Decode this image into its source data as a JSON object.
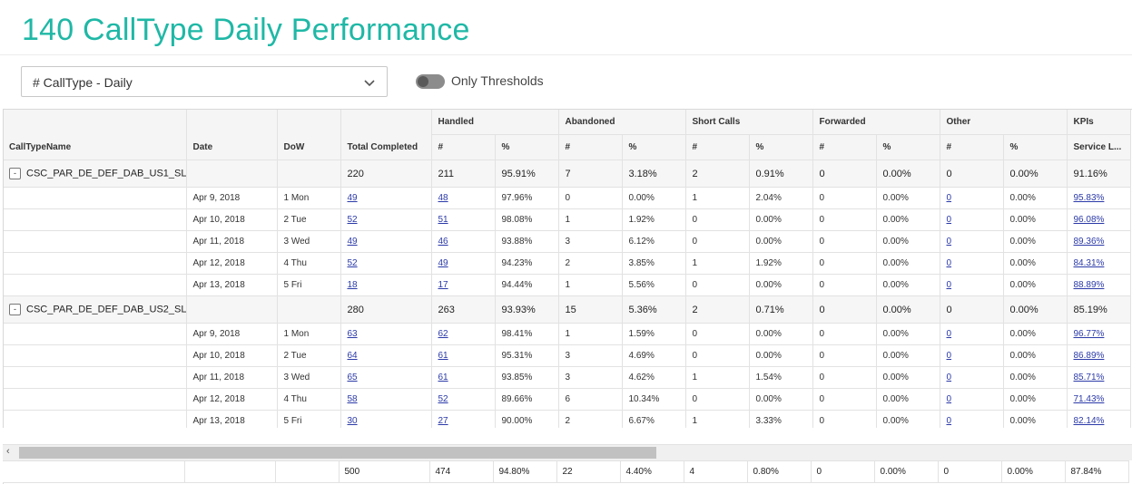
{
  "page": {
    "title": "140 CallType Daily Performance"
  },
  "filter": {
    "selected": "# CallType - Daily"
  },
  "threshold_toggle": {
    "label": "Only Thresholds",
    "on": false
  },
  "table": {
    "group_headers": [
      "Handled",
      "Abandoned",
      "Short Calls",
      "Forwarded",
      "Other",
      "KPIs"
    ],
    "columns": {
      "name": "CallTypeName",
      "date": "Date",
      "dow": "DoW",
      "total": "Total Completed",
      "num": "#",
      "pct": "%",
      "service": "Service L..."
    },
    "groups": [
      {
        "name": "CSC_PAR_DE_DEF_DAB_US1_SL",
        "expander": "-",
        "summary": [
          "220",
          "211",
          "95.91%",
          "7",
          "3.18%",
          "2",
          "0.91%",
          "0",
          "0.00%",
          "0",
          "0.00%",
          "91.16%"
        ],
        "rows": [
          {
            "date": "Apr 9, 2018",
            "dow": "1 Mon",
            "cells": [
              "49",
              "48",
              "97.96%",
              "0",
              "0.00%",
              "1",
              "2.04%",
              "0",
              "0.00%",
              "0",
              "0.00%",
              "95.83%"
            ]
          },
          {
            "date": "Apr 10, 2018",
            "dow": "2 Tue",
            "cells": [
              "52",
              "51",
              "98.08%",
              "1",
              "1.92%",
              "0",
              "0.00%",
              "0",
              "0.00%",
              "0",
              "0.00%",
              "96.08%"
            ]
          },
          {
            "date": "Apr 11, 2018",
            "dow": "3 Wed",
            "cells": [
              "49",
              "46",
              "93.88%",
              "3",
              "6.12%",
              "0",
              "0.00%",
              "0",
              "0.00%",
              "0",
              "0.00%",
              "89.36%"
            ]
          },
          {
            "date": "Apr 12, 2018",
            "dow": "4 Thu",
            "cells": [
              "52",
              "49",
              "94.23%",
              "2",
              "3.85%",
              "1",
              "1.92%",
              "0",
              "0.00%",
              "0",
              "0.00%",
              "84.31%"
            ]
          },
          {
            "date": "Apr 13, 2018",
            "dow": "5 Fri",
            "cells": [
              "18",
              "17",
              "94.44%",
              "1",
              "5.56%",
              "0",
              "0.00%",
              "0",
              "0.00%",
              "0",
              "0.00%",
              "88.89%"
            ]
          }
        ]
      },
      {
        "name": "CSC_PAR_DE_DEF_DAB_US2_SL",
        "expander": "-",
        "summary": [
          "280",
          "263",
          "93.93%",
          "15",
          "5.36%",
          "2",
          "0.71%",
          "0",
          "0.00%",
          "0",
          "0.00%",
          "85.19%"
        ],
        "rows": [
          {
            "date": "Apr 9, 2018",
            "dow": "1 Mon",
            "cells": [
              "63",
              "62",
              "98.41%",
              "1",
              "1.59%",
              "0",
              "0.00%",
              "0",
              "0.00%",
              "0",
              "0.00%",
              "96.77%"
            ]
          },
          {
            "date": "Apr 10, 2018",
            "dow": "2 Tue",
            "cells": [
              "64",
              "61",
              "95.31%",
              "3",
              "4.69%",
              "0",
              "0.00%",
              "0",
              "0.00%",
              "0",
              "0.00%",
              "86.89%"
            ]
          },
          {
            "date": "Apr 11, 2018",
            "dow": "3 Wed",
            "cells": [
              "65",
              "61",
              "93.85%",
              "3",
              "4.62%",
              "1",
              "1.54%",
              "0",
              "0.00%",
              "0",
              "0.00%",
              "85.71%"
            ]
          },
          {
            "date": "Apr 12, 2018",
            "dow": "4 Thu",
            "cells": [
              "58",
              "52",
              "89.66%",
              "6",
              "10.34%",
              "0",
              "0.00%",
              "0",
              "0.00%",
              "0",
              "0.00%",
              "71.43%"
            ]
          },
          {
            "date": "Apr 13, 2018",
            "dow": "5 Fri",
            "cells": [
              "30",
              "27",
              "90.00%",
              "2",
              "6.67%",
              "1",
              "3.33%",
              "0",
              "0.00%",
              "0",
              "0.00%",
              "82.14%"
            ]
          }
        ]
      }
    ],
    "totals": [
      "500",
      "474",
      "94.80%",
      "22",
      "4.40%",
      "4",
      "0.80%",
      "0",
      "0.00%",
      "0",
      "0.00%",
      "87.84%"
    ]
  },
  "scrollbar": {
    "left_arrow": "‹"
  },
  "colors": {
    "title": "#1fb8a6",
    "link": "#2b3aa8"
  },
  "icons": {
    "select_arrow": "chevron-down-icon"
  }
}
